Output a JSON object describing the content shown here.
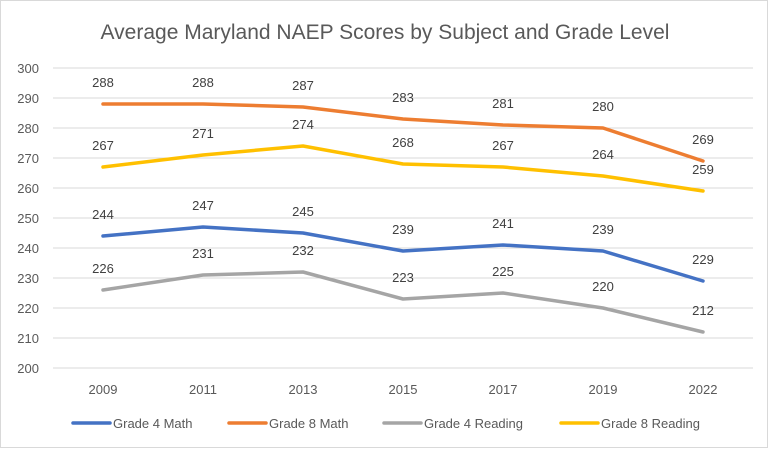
{
  "chart_data": {
    "type": "line",
    "title": "Average Maryland NAEP Scores by Subject and Grade Level",
    "xlabel": "",
    "ylabel": "",
    "categories": [
      "2009",
      "2011",
      "2013",
      "2015",
      "2017",
      "2019",
      "2022"
    ],
    "ylim": [
      200,
      300
    ],
    "yticks": [
      200,
      210,
      220,
      230,
      240,
      250,
      260,
      270,
      280,
      290,
      300
    ],
    "grid": true,
    "legend_position": "bottom",
    "data_labels": true,
    "series": [
      {
        "name": "Grade 4 Math",
        "color": "#4472C4",
        "values": [
          244,
          247,
          245,
          239,
          241,
          239,
          229
        ]
      },
      {
        "name": "Grade 8 Math",
        "color": "#ED7D31",
        "values": [
          288,
          288,
          287,
          283,
          281,
          280,
          269
        ]
      },
      {
        "name": "Grade 4 Reading",
        "color": "#A5A5A5",
        "values": [
          226,
          231,
          232,
          223,
          225,
          220,
          212
        ]
      },
      {
        "name": "Grade 8 Reading",
        "color": "#FFC000",
        "values": [
          267,
          271,
          274,
          268,
          267,
          264,
          259
        ]
      }
    ]
  }
}
